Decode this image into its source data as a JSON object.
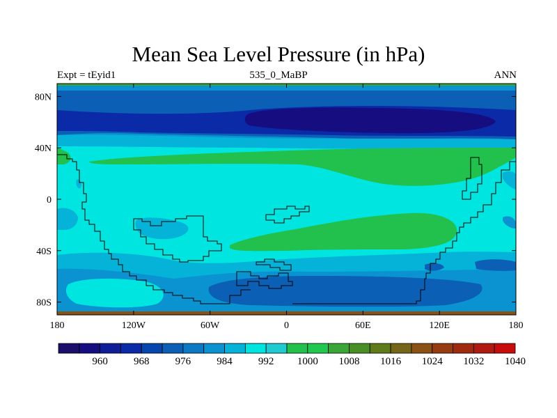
{
  "title": "Mean Sea Level Pressure (in hPa)",
  "subtitle_left": "Expt = tEyid1",
  "subtitle_center": "535_0_MaBP",
  "subtitle_right": "ANN",
  "chart_data": {
    "type": "contour-map",
    "variable": "Mean Sea Level Pressure",
    "units": "hPa",
    "projection": "cylindrical equidistant",
    "x_range": [
      -180,
      180
    ],
    "y_range": [
      -90,
      90
    ],
    "x_ticks": [
      {
        "value": -180,
        "label": "180"
      },
      {
        "value": -120,
        "label": "120W"
      },
      {
        "value": -60,
        "label": "60W"
      },
      {
        "value": 0,
        "label": "0"
      },
      {
        "value": 60,
        "label": "60E"
      },
      {
        "value": 120,
        "label": "120E"
      },
      {
        "value": 180,
        "label": "180"
      }
    ],
    "y_ticks": [
      {
        "value": 80,
        "label": "80N"
      },
      {
        "value": 40,
        "label": "40N"
      },
      {
        "value": 0,
        "label": "0"
      },
      {
        "value": -40,
        "label": "40S"
      },
      {
        "value": -80,
        "label": "80S"
      }
    ],
    "colorbar": {
      "levels": [
        956,
        960,
        964,
        968,
        972,
        976,
        980,
        984,
        988,
        992,
        996,
        1000,
        1004,
        1008,
        1012,
        1016,
        1020,
        1024,
        1028,
        1032,
        1036,
        1040
      ],
      "labels": [
        "960",
        "968",
        "976",
        "984",
        "992",
        "1000",
        "1008",
        "1016",
        "1024",
        "1032",
        "1040"
      ],
      "colors": [
        "#1c0f6b",
        "#150d80",
        "#0f1e96",
        "#0a2aa8",
        "#0646ad",
        "#0b5fb5",
        "#0d78c4",
        "#0a93d0",
        "#05b3d8",
        "#00e5e0",
        "#1fcad0",
        "#22c04c",
        "#20c850",
        "#3aa637",
        "#4a8f25",
        "#5f7c1a",
        "#76661a",
        "#8a5214",
        "#963c10",
        "#a02a10",
        "#b01a10",
        "#c80c0c"
      ]
    }
  }
}
